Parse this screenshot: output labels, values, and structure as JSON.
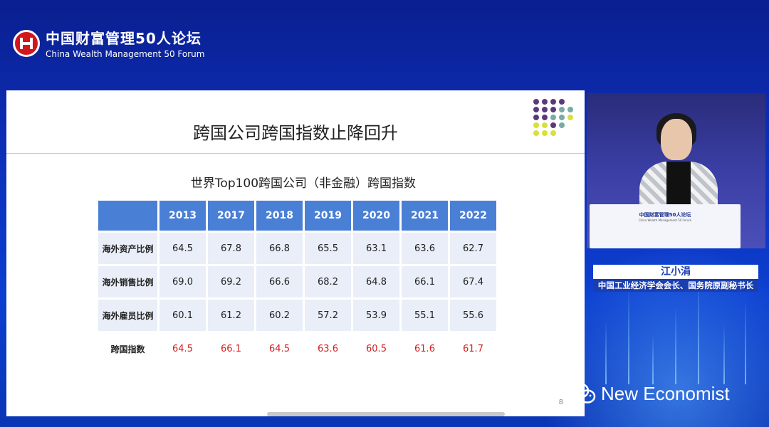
{
  "logo": {
    "cn": "中国财富管理50人论坛",
    "en": "China Wealth Management 50 Forum"
  },
  "slide": {
    "title": "跨国公司跨国指数止降回升",
    "table_title": "世界Top100跨国公司（非金融）跨国指数",
    "page_number": "8",
    "columns": [
      "2013",
      "2017",
      "2018",
      "2019",
      "2020",
      "2021",
      "2022"
    ],
    "rows": [
      {
        "label": "海外资产比例",
        "values": [
          "64.5",
          "67.8",
          "66.8",
          "65.5",
          "63.1",
          "63.6",
          "62.7"
        ]
      },
      {
        "label": "海外销售比例",
        "values": [
          "69.0",
          "69.2",
          "66.6",
          "68.2",
          "64.8",
          "66.1",
          "67.4"
        ]
      },
      {
        "label": "海外雇员比例",
        "values": [
          "60.1",
          "61.2",
          "60.2",
          "57.2",
          "53.9",
          "55.1",
          "55.6"
        ]
      },
      {
        "label": "跨国指数",
        "values": [
          "64.5",
          "66.1",
          "64.5",
          "63.6",
          "60.5",
          "61.6",
          "61.7"
        ]
      }
    ]
  },
  "video": {
    "podium_title": "中国财富管理50人论坛",
    "podium_sub": "China Wealth Management 50 Forum"
  },
  "speaker": {
    "name": "江小涓",
    "title": "中国工业经济学会会长、国务院原副秘书长"
  },
  "watermark": {
    "text": "New Economist",
    "icon": "wechat-icon"
  },
  "colors": {
    "header_blue": "#4a7fd6",
    "row_bg": "#e9eef8",
    "index_red": "#d42020",
    "brand_red": "#d2161e"
  }
}
